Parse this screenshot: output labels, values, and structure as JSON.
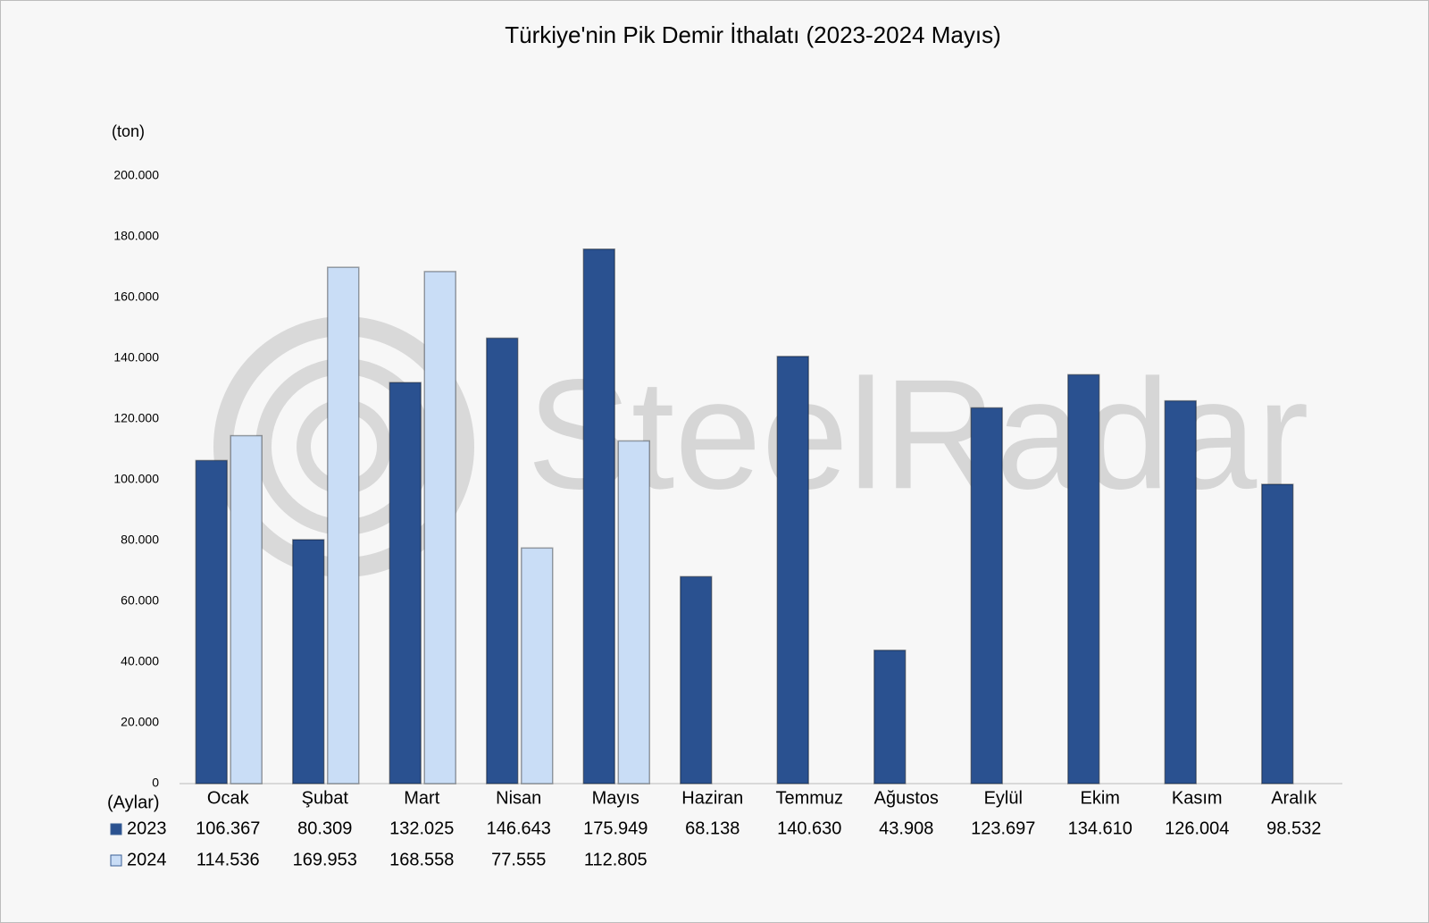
{
  "chart_data": {
    "type": "bar",
    "title": "Türkiye'nin Pik Demir İthalatı (2023-2024 Mayıs)",
    "y_axis_label": "(ton)",
    "x_axis_label": "(Aylar)",
    "watermark": "SteelRadar",
    "categories": [
      "Ocak",
      "Şubat",
      "Mart",
      "Nisan",
      "Mayıs",
      "Haziran",
      "Temmuz",
      "Ağustos",
      "Eylül",
      "Ekim",
      "Kasım",
      "Aralık"
    ],
    "series": [
      {
        "name": "2023",
        "color": "#2a5190",
        "values": [
          106367,
          80309,
          132025,
          146643,
          175949,
          68138,
          140630,
          43908,
          123697,
          134610,
          126004,
          98532
        ],
        "value_labels": [
          "106.367",
          "80.309",
          "132.025",
          "146.643",
          "175.949",
          "68.138",
          "140.630",
          "43.908",
          "123.697",
          "134.610",
          "126.004",
          "98.532"
        ]
      },
      {
        "name": "2024",
        "color": "#c9ddf6",
        "values": [
          114536,
          169953,
          168558,
          77555,
          112805,
          null,
          null,
          null,
          null,
          null,
          null,
          null
        ],
        "value_labels": [
          "114.536",
          "169.953",
          "168.558",
          "77.555",
          "112.805",
          null,
          null,
          null,
          null,
          null,
          null,
          null
        ]
      }
    ],
    "ylim": [
      0,
      200000
    ],
    "yticks": [
      0,
      {
        "value": 20000,
        "label": "20.000"
      },
      {
        "value": 40000,
        "label": "40.000"
      },
      {
        "value": 60000,
        "label": "60.000"
      },
      {
        "value": 80000,
        "label": "80.000"
      },
      {
        "value": 100000,
        "label": "100.000"
      },
      {
        "value": 120000,
        "label": "120.000"
      },
      {
        "value": 140000,
        "label": "140.000"
      },
      {
        "value": 160000,
        "label": "160.000"
      },
      {
        "value": 180000,
        "label": "180.000"
      },
      {
        "value": 200000,
        "label": "200.000"
      }
    ],
    "grid": false,
    "data_table": true
  }
}
